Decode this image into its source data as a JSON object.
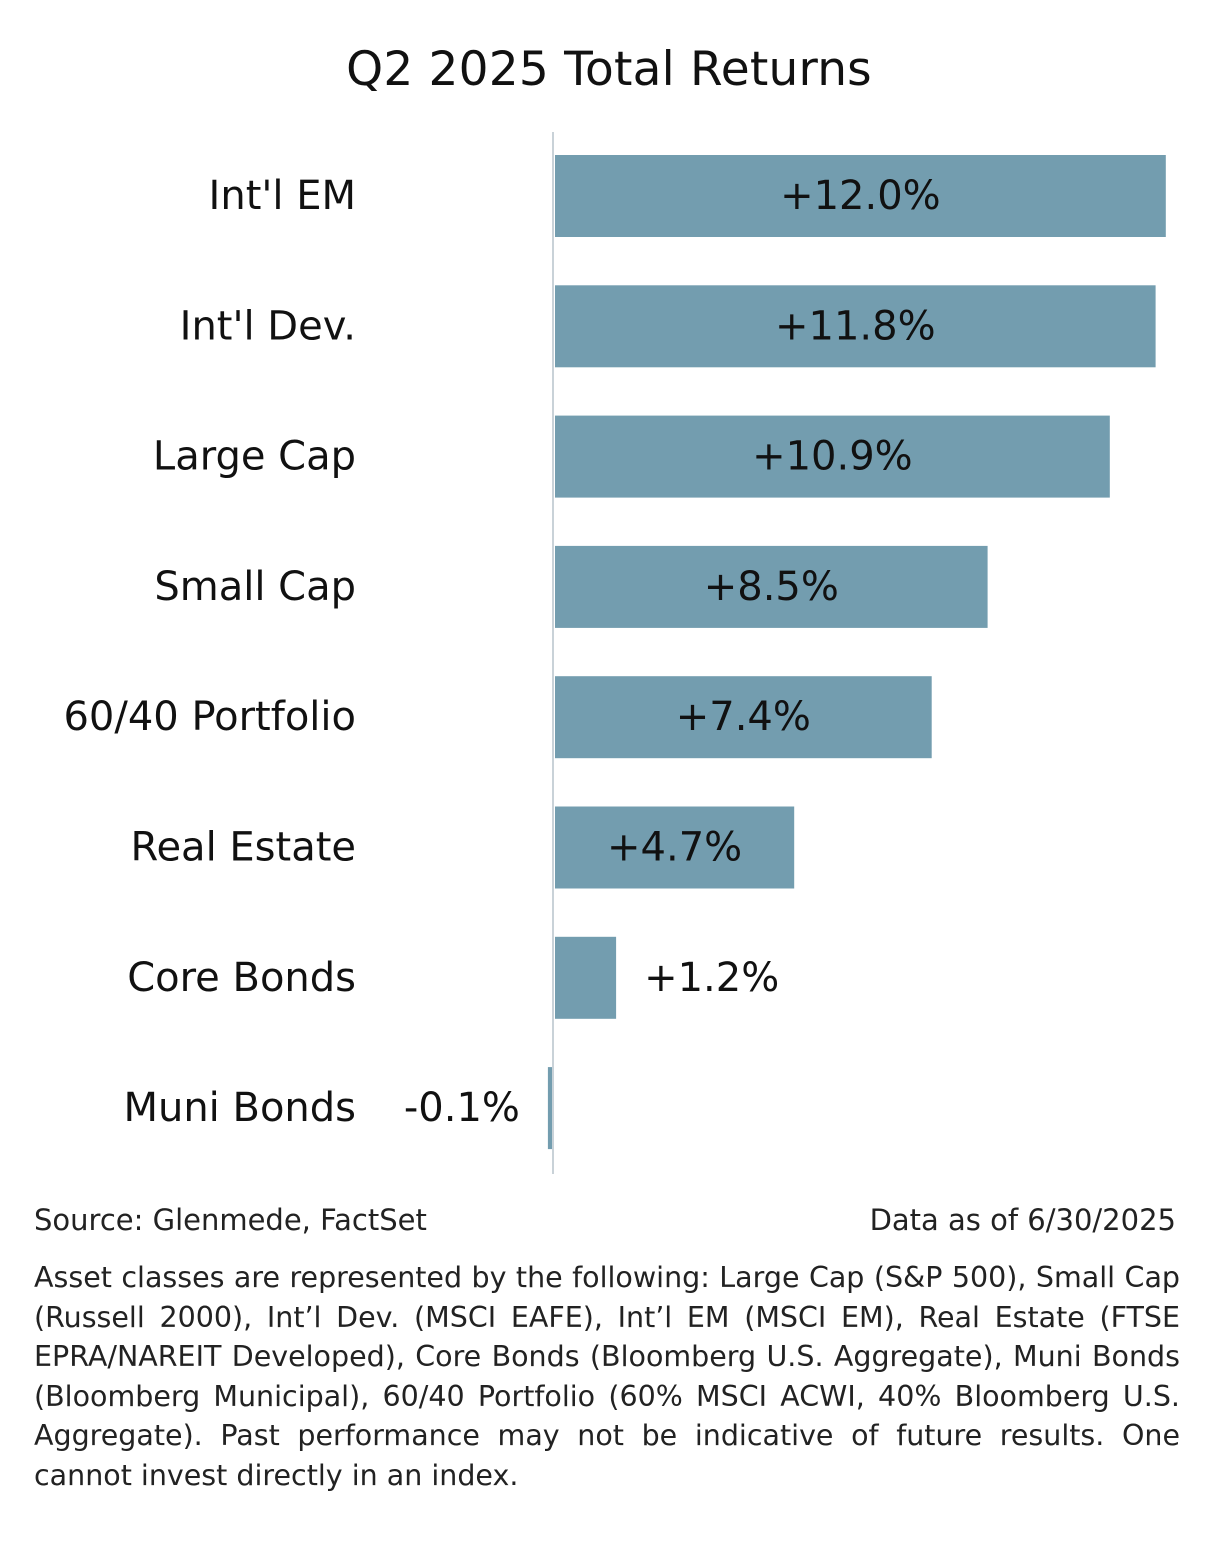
{
  "chart_data": {
    "type": "bar",
    "orientation": "horizontal",
    "title": "Q2 2025 Total Returns",
    "categories": [
      "Int'l EM",
      "Int'l Dev.",
      "Large Cap",
      "Small Cap",
      "60/40 Portfolio",
      "Real Estate",
      "Core Bonds",
      "Muni Bonds"
    ],
    "values": [
      12.0,
      11.8,
      10.9,
      8.5,
      7.4,
      4.7,
      1.2,
      -0.1
    ],
    "data_labels": [
      "+12.0%",
      "+11.8%",
      "+10.9%",
      "+8.5%",
      "+7.4%",
      "+4.7%",
      "+1.2%",
      "-0.1%"
    ],
    "unit": "%",
    "xlim": [
      -0.1,
      12.0
    ],
    "grid": false,
    "legend": "none",
    "bar_color": "#739daf",
    "axis_color": "#c9d2d8"
  },
  "source": "Source: Glenmede, FactSet",
  "data_date": "Data as of 6/30/2025",
  "footnote": "Asset classes are represented by the following: Large Cap (S&P 500), Small Cap (Russell 2000), Int’l Dev. (MSCI EAFE), Int’l EM (MSCI EM), Real Estate (FTSE EPRA/NAREIT Developed), Core Bonds (Bloomberg U.S. Aggregate), Muni Bonds (Bloomberg Municipal), 60/40 Portfolio (60% MSCI ACWI, 40% Bloomberg U.S. Aggregate). Past performance may not be indicative of future results. One cannot invest directly in an index."
}
